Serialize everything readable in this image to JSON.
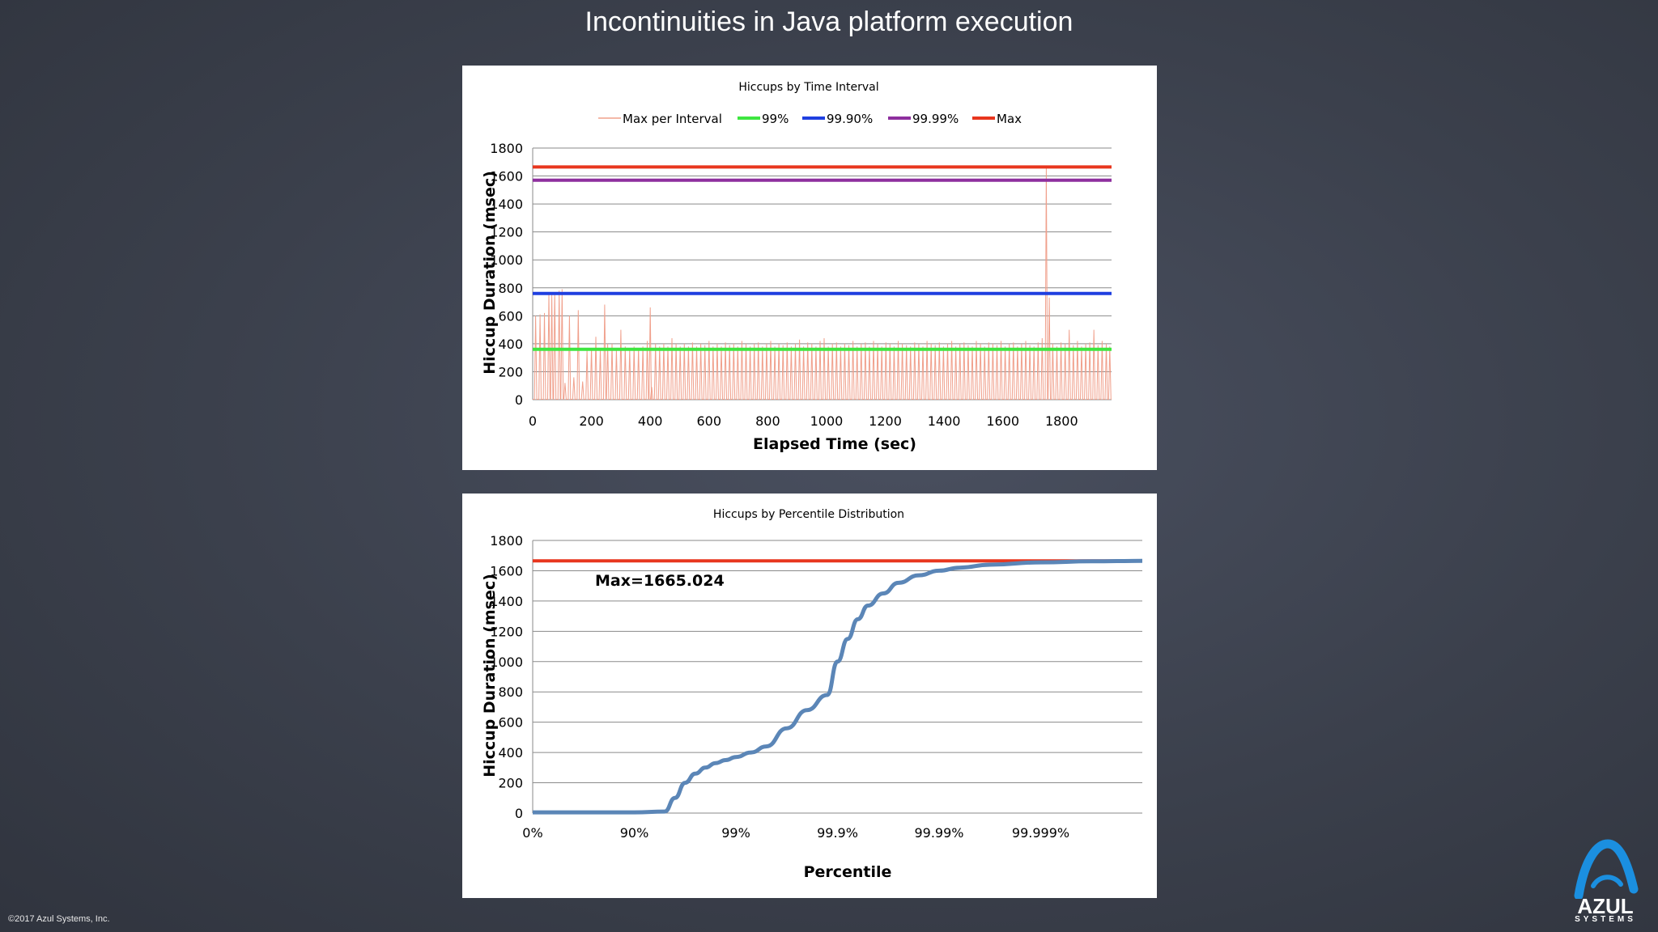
{
  "slide": {
    "title": "Incontinuities in Java platform execution",
    "copyright": "©2017 Azul Systems, Inc.",
    "logo_text": "AZUL",
    "logo_subtext": "SYSTEMS"
  },
  "colors": {
    "max_per_interval": "#f0a08c",
    "p99": "#3ee640",
    "p999": "#1f3fe0",
    "p9999": "#8e2f9e",
    "max": "#e8361e",
    "percentile_curve": "#5b86b7",
    "logo_blue": "#1b8fe0"
  },
  "chart_data": [
    {
      "type": "line",
      "title": "Hiccups by Time Interval",
      "xlabel": "Elapsed Time (sec)",
      "ylabel": "Hiccup Duration (msec)",
      "xlim": [
        0,
        1970
      ],
      "ylim": [
        0,
        1800
      ],
      "x_ticks": [
        0,
        200,
        400,
        600,
        800,
        1000,
        1200,
        1400,
        1600,
        1800
      ],
      "y_ticks": [
        0,
        200,
        400,
        600,
        800,
        1000,
        1200,
        1400,
        1600,
        1800
      ],
      "grid": true,
      "legend_position": "top",
      "series": [
        {
          "name": "Max per Interval",
          "kind": "spikes",
          "baseline": 3,
          "spikes": [
            [
              10,
              600
            ],
            [
              25,
              610
            ],
            [
              40,
              620
            ],
            [
              55,
              760
            ],
            [
              65,
              750
            ],
            [
              75,
              770
            ],
            [
              90,
              780
            ],
            [
              100,
              790
            ],
            [
              110,
              120
            ],
            [
              125,
              600
            ],
            [
              140,
              160
            ],
            [
              155,
              640
            ],
            [
              170,
              130
            ],
            [
              185,
              350
            ],
            [
              200,
              370
            ],
            [
              215,
              450
            ],
            [
              230,
              360
            ],
            [
              245,
              680
            ],
            [
              255,
              400
            ],
            [
              270,
              400
            ],
            [
              285,
              360
            ],
            [
              300,
              500
            ],
            [
              315,
              380
            ],
            [
              330,
              360
            ],
            [
              345,
              380
            ],
            [
              360,
              370
            ],
            [
              375,
              380
            ],
            [
              390,
              420
            ],
            [
              400,
              660
            ],
            [
              405,
              90
            ],
            [
              418,
              400
            ],
            [
              432,
              380
            ],
            [
              446,
              400
            ],
            [
              460,
              380
            ],
            [
              474,
              440
            ],
            [
              488,
              400
            ],
            [
              502,
              380
            ],
            [
              516,
              400
            ],
            [
              530,
              380
            ],
            [
              544,
              410
            ],
            [
              558,
              380
            ],
            [
              572,
              400
            ],
            [
              586,
              390
            ],
            [
              600,
              420
            ],
            [
              614,
              380
            ],
            [
              628,
              400
            ],
            [
              642,
              380
            ],
            [
              656,
              410
            ],
            [
              670,
              390
            ],
            [
              684,
              400
            ],
            [
              698,
              380
            ],
            [
              712,
              420
            ],
            [
              726,
              400
            ],
            [
              740,
              380
            ],
            [
              754,
              400
            ],
            [
              768,
              410
            ],
            [
              782,
              380
            ],
            [
              796,
              400
            ],
            [
              810,
              420
            ],
            [
              824,
              380
            ],
            [
              838,
              400
            ],
            [
              852,
              390
            ],
            [
              866,
              410
            ],
            [
              880,
              380
            ],
            [
              894,
              400
            ],
            [
              908,
              430
            ],
            [
              922,
              380
            ],
            [
              936,
              410
            ],
            [
              950,
              400
            ],
            [
              964,
              380
            ],
            [
              978,
              420
            ],
            [
              992,
              440
            ],
            [
              1006,
              380
            ],
            [
              1020,
              400
            ],
            [
              1034,
              410
            ],
            [
              1048,
              380
            ],
            [
              1062,
              400
            ],
            [
              1076,
              390
            ],
            [
              1090,
              420
            ],
            [
              1104,
              380
            ],
            [
              1118,
              400
            ],
            [
              1132,
              410
            ],
            [
              1146,
              380
            ],
            [
              1160,
              420
            ],
            [
              1174,
              400
            ],
            [
              1188,
              380
            ],
            [
              1202,
              410
            ],
            [
              1216,
              400
            ],
            [
              1230,
              380
            ],
            [
              1244,
              420
            ],
            [
              1258,
              400
            ],
            [
              1272,
              390
            ],
            [
              1286,
              380
            ],
            [
              1300,
              410
            ],
            [
              1314,
              400
            ],
            [
              1328,
              380
            ],
            [
              1342,
              420
            ],
            [
              1356,
              400
            ],
            [
              1370,
              390
            ],
            [
              1384,
              410
            ],
            [
              1398,
              380
            ],
            [
              1412,
              400
            ],
            [
              1426,
              420
            ],
            [
              1440,
              380
            ],
            [
              1454,
              400
            ],
            [
              1468,
              410
            ],
            [
              1482,
              390
            ],
            [
              1496,
              380
            ],
            [
              1510,
              420
            ],
            [
              1524,
              400
            ],
            [
              1538,
              380
            ],
            [
              1552,
              410
            ],
            [
              1566,
              400
            ],
            [
              1580,
              390
            ],
            [
              1594,
              420
            ],
            [
              1608,
              380
            ],
            [
              1622,
              400
            ],
            [
              1636,
              410
            ],
            [
              1650,
              380
            ],
            [
              1664,
              400
            ],
            [
              1678,
              420
            ],
            [
              1692,
              390
            ],
            [
              1706,
              380
            ],
            [
              1720,
              410
            ],
            [
              1734,
              440
            ],
            [
              1748,
              1665
            ],
            [
              1758,
              730
            ],
            [
              1770,
              400
            ],
            [
              1784,
              380
            ],
            [
              1798,
              410
            ],
            [
              1812,
              400
            ],
            [
              1826,
              500
            ],
            [
              1840,
              390
            ],
            [
              1854,
              420
            ],
            [
              1868,
              380
            ],
            [
              1882,
              400
            ],
            [
              1896,
              410
            ],
            [
              1910,
              500
            ],
            [
              1924,
              390
            ],
            [
              1938,
              420
            ],
            [
              1952,
              400
            ],
            [
              1964,
              380
            ]
          ]
        },
        {
          "name": "99%",
          "value": 360
        },
        {
          "name": "99.90%",
          "value": 760
        },
        {
          "name": "99.99%",
          "value": 1570
        },
        {
          "name": "Max",
          "value": 1665
        }
      ]
    },
    {
      "type": "line",
      "title": "Hiccups by Percentile Distribution",
      "xlabel": "Percentile",
      "ylabel": "Hiccup Duration (msec)",
      "xscale": "log-percentile (nines)",
      "xlim": [
        "0%",
        "99.99999%"
      ],
      "ylim": [
        0,
        1800
      ],
      "x_ticks": [
        "0%",
        "90%",
        "99%",
        "99.9%",
        "99.99%",
        "99.999%"
      ],
      "y_ticks": [
        0,
        200,
        400,
        600,
        800,
        1000,
        1200,
        1400,
        1600,
        1800
      ],
      "grid": true,
      "annotation": "Max=1665.024",
      "max_value": 1665.024,
      "series": [
        {
          "name": "",
          "nines": [
            0,
            0.5,
            1.0,
            1.3,
            1.4,
            1.5,
            1.6,
            1.7,
            1.8,
            1.9,
            2.0,
            2.15,
            2.3,
            2.5,
            2.7,
            2.9,
            3.0,
            3.1,
            3.2,
            3.3,
            3.45,
            3.6,
            3.8,
            4.0,
            4.2,
            4.5,
            5.0,
            5.5,
            6.0
          ],
          "values": [
            5,
            5,
            5,
            10,
            100,
            200,
            260,
            300,
            330,
            350,
            370,
            400,
            440,
            560,
            680,
            780,
            1000,
            1150,
            1280,
            1370,
            1450,
            1520,
            1570,
            1600,
            1620,
            1640,
            1655,
            1662,
            1665
          ]
        }
      ]
    }
  ]
}
